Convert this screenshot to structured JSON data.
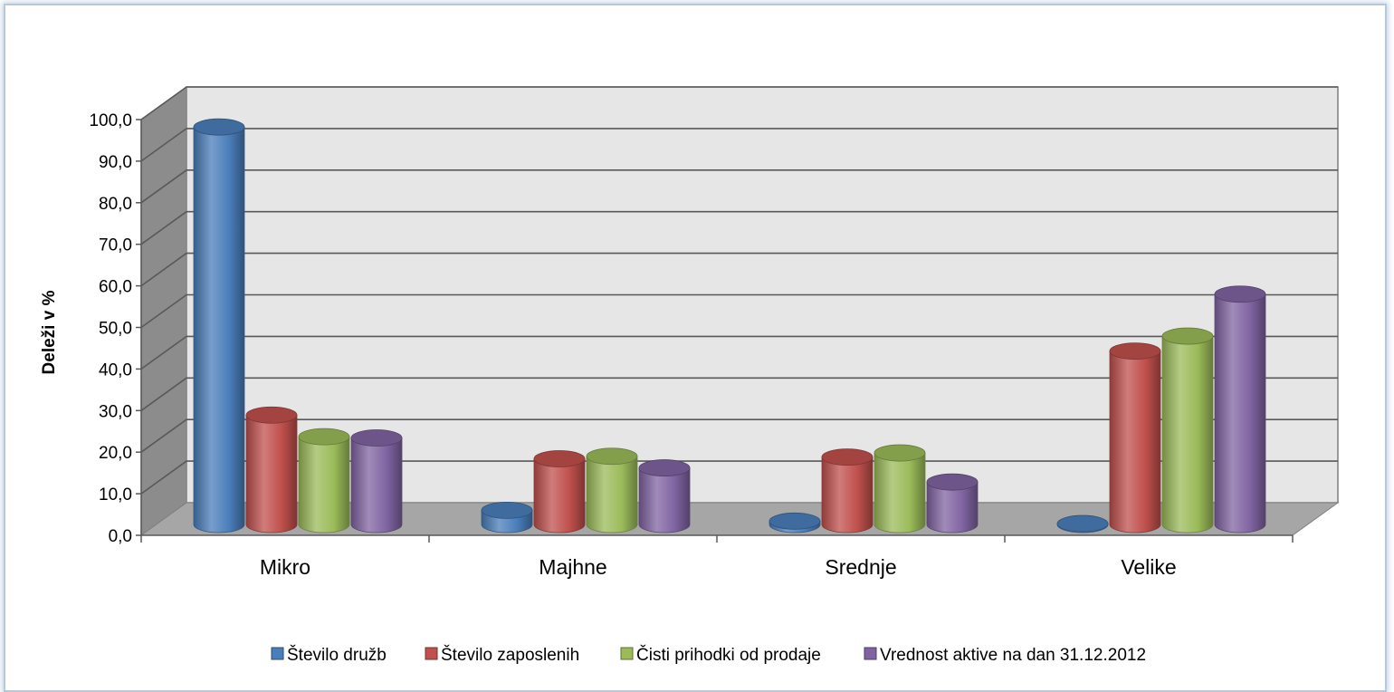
{
  "chart_data": {
    "type": "bar",
    "categories": [
      "Mikro",
      "Majhne",
      "Srednje",
      "Velike"
    ],
    "ylabel": "Deleži v %",
    "xlabel": "",
    "ylim": [
      0,
      100
    ],
    "ytick_labels": [
      "0,0",
      "10,0",
      "20,0",
      "30,0",
      "40,0",
      "50,0",
      "60,0",
      "70,0",
      "80,0",
      "90,0",
      "100,0"
    ],
    "grid": true,
    "legend_position": "bottom",
    "series": [
      {
        "name": "Število družb",
        "color": "#4a7ebb",
        "values": [
          95.6,
          3.4,
          0.8,
          0.2
        ]
      },
      {
        "name": "Število zaposlenih",
        "color": "#c0504d",
        "values": [
          26.3,
          15.8,
          16.2,
          41.7
        ]
      },
      {
        "name": "Čisti prihodki od prodaje",
        "color": "#9bbb59",
        "values": [
          21.1,
          16.4,
          17.2,
          45.3
        ]
      },
      {
        "name": "Vrednost aktive na dan 31.12.2012",
        "color": "#8064a2",
        "values": [
          20.8,
          13.6,
          10.2,
          55.4
        ]
      }
    ]
  }
}
